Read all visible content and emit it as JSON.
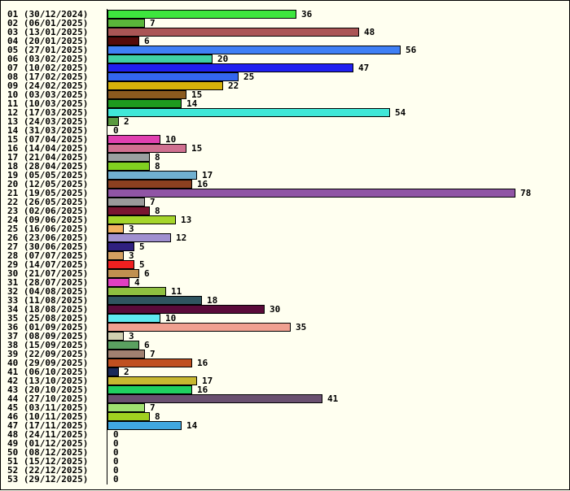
{
  "chart_data": {
    "type": "bar",
    "orientation": "horizontal",
    "title": "",
    "xlabel": "",
    "ylabel": "",
    "xlim": [
      0,
      78
    ],
    "grid": false,
    "legend": "none",
    "categories": [
      "01 (30/12/2024)",
      "02 (06/01/2025)",
      "03 (13/01/2025)",
      "04 (20/01/2025)",
      "05 (27/01/2025)",
      "06 (03/02/2025)",
      "07 (10/02/2025)",
      "08 (17/02/2025)",
      "09 (24/02/2025)",
      "10 (03/03/2025)",
      "11 (10/03/2025)",
      "12 (17/03/2025)",
      "13 (24/03/2025)",
      "14 (31/03/2025)",
      "15 (07/04/2025)",
      "16 (14/04/2025)",
      "17 (21/04/2025)",
      "18 (28/04/2025)",
      "19 (05/05/2025)",
      "20 (12/05/2025)",
      "21 (19/05/2025)",
      "22 (26/05/2025)",
      "23 (02/06/2025)",
      "24 (09/06/2025)",
      "25 (16/06/2025)",
      "26 (23/06/2025)",
      "27 (30/06/2025)",
      "28 (07/07/2025)",
      "29 (14/07/2025)",
      "30 (21/07/2025)",
      "31 (28/07/2025)",
      "32 (04/08/2025)",
      "33 (11/08/2025)",
      "34 (18/08/2025)",
      "35 (25/08/2025)",
      "36 (01/09/2025)",
      "37 (08/09/2025)",
      "38 (15/09/2025)",
      "39 (22/09/2025)",
      "40 (29/09/2025)",
      "41 (06/10/2025)",
      "42 (13/10/2025)",
      "43 (20/10/2025)",
      "44 (27/10/2025)",
      "45 (03/11/2025)",
      "46 (10/11/2025)",
      "47 (17/11/2025)",
      "48 (24/11/2025)",
      "49 (01/12/2025)",
      "50 (08/12/2025)",
      "51 (15/12/2025)",
      "52 (22/12/2025)",
      "53 (29/12/2025)"
    ],
    "values": [
      36,
      7,
      48,
      6,
      56,
      20,
      47,
      25,
      22,
      15,
      14,
      54,
      2,
      0,
      10,
      15,
      8,
      8,
      17,
      16,
      78,
      7,
      8,
      13,
      3,
      12,
      5,
      3,
      5,
      6,
      4,
      11,
      18,
      30,
      10,
      35,
      3,
      6,
      7,
      16,
      2,
      17,
      16,
      41,
      7,
      8,
      14,
      0,
      0,
      0,
      0,
      0,
      0
    ],
    "colors": [
      "#3ee63e",
      "#5ab53a",
      "#aa5555",
      "#550a0a",
      "#3f7ff5",
      "#3fd0a5",
      "#2020f0",
      "#3366ee",
      "#d5b20a",
      "#8b5a1e",
      "#1e9a1e",
      "#40e8d8",
      "#5a9a3f",
      "#ffffff",
      "#e040b0",
      "#d07090",
      "#9aa0a0",
      "#80d020",
      "#70b0d0",
      "#8b4020",
      "#9055a5",
      "#9a9a9a",
      "#7a1530",
      "#a5d52a",
      "#f0b060",
      "#a090d0",
      "#302080",
      "#d5a060",
      "#f02020",
      "#c09050",
      "#e040c0",
      "#8fc040",
      "#2f5560",
      "#5a0a3a",
      "#5fe8f0",
      "#f0a090",
      "#d0d0b0",
      "#5aa060",
      "#a08070",
      "#c05020",
      "#1a2a5a",
      "#c8b830",
      "#20d060",
      "#6a5070",
      "#a0e070",
      "#a0d020",
      "#40a8e0",
      "#ffffff",
      "#ffffff",
      "#ffffff",
      "#ffffff",
      "#ffffff",
      "#ffffff"
    ]
  }
}
